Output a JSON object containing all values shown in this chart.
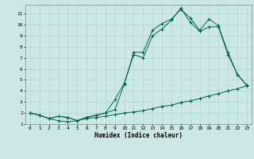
{
  "title": "",
  "xlabel": "Humidex (Indice chaleur)",
  "bg_color": "#cce8e4",
  "grid_color": "#b0d8d0",
  "line_color": "#006655",
  "xlim": [
    -0.5,
    23.5
  ],
  "ylim": [
    1,
    11.8
  ],
  "xticks": [
    0,
    1,
    2,
    3,
    4,
    5,
    6,
    7,
    8,
    9,
    10,
    11,
    12,
    13,
    14,
    15,
    16,
    17,
    18,
    19,
    20,
    21,
    22,
    23
  ],
  "yticks": [
    1,
    2,
    3,
    4,
    5,
    6,
    7,
    8,
    9,
    10,
    11
  ],
  "line1_x": [
    0,
    1,
    2,
    3,
    4,
    5,
    6,
    7,
    8,
    9,
    10,
    11,
    12,
    13,
    14,
    15,
    16,
    17,
    18,
    19,
    20,
    21,
    22,
    23
  ],
  "line1_y": [
    2.0,
    1.8,
    1.5,
    1.3,
    1.2,
    1.3,
    1.5,
    1.6,
    1.7,
    1.85,
    2.0,
    2.1,
    2.2,
    2.4,
    2.6,
    2.7,
    2.95,
    3.1,
    3.3,
    3.55,
    3.75,
    4.0,
    4.2,
    4.45
  ],
  "line2_x": [
    0,
    1,
    2,
    3,
    4,
    5,
    6,
    7,
    8,
    9,
    10,
    11,
    12,
    13,
    14,
    15,
    16,
    17,
    18,
    19,
    20,
    21,
    22,
    23
  ],
  "line2_y": [
    2.0,
    1.8,
    1.5,
    1.7,
    1.6,
    1.3,
    1.6,
    1.8,
    2.0,
    3.2,
    4.7,
    7.3,
    7.0,
    9.0,
    9.6,
    10.4,
    11.5,
    10.2,
    9.4,
    9.8,
    9.8,
    7.3,
    5.5,
    4.5
  ],
  "line3_x": [
    0,
    1,
    2,
    3,
    4,
    5,
    6,
    7,
    8,
    9,
    10,
    11,
    12,
    13,
    14,
    15,
    16,
    17,
    18,
    19,
    20,
    21,
    22,
    23
  ],
  "line3_y": [
    2.0,
    1.8,
    1.5,
    1.7,
    1.6,
    1.3,
    1.6,
    1.8,
    2.0,
    2.3,
    4.6,
    7.5,
    7.5,
    9.5,
    10.1,
    10.5,
    11.4,
    10.6,
    9.5,
    10.5,
    9.9,
    7.5,
    5.5,
    4.5
  ]
}
